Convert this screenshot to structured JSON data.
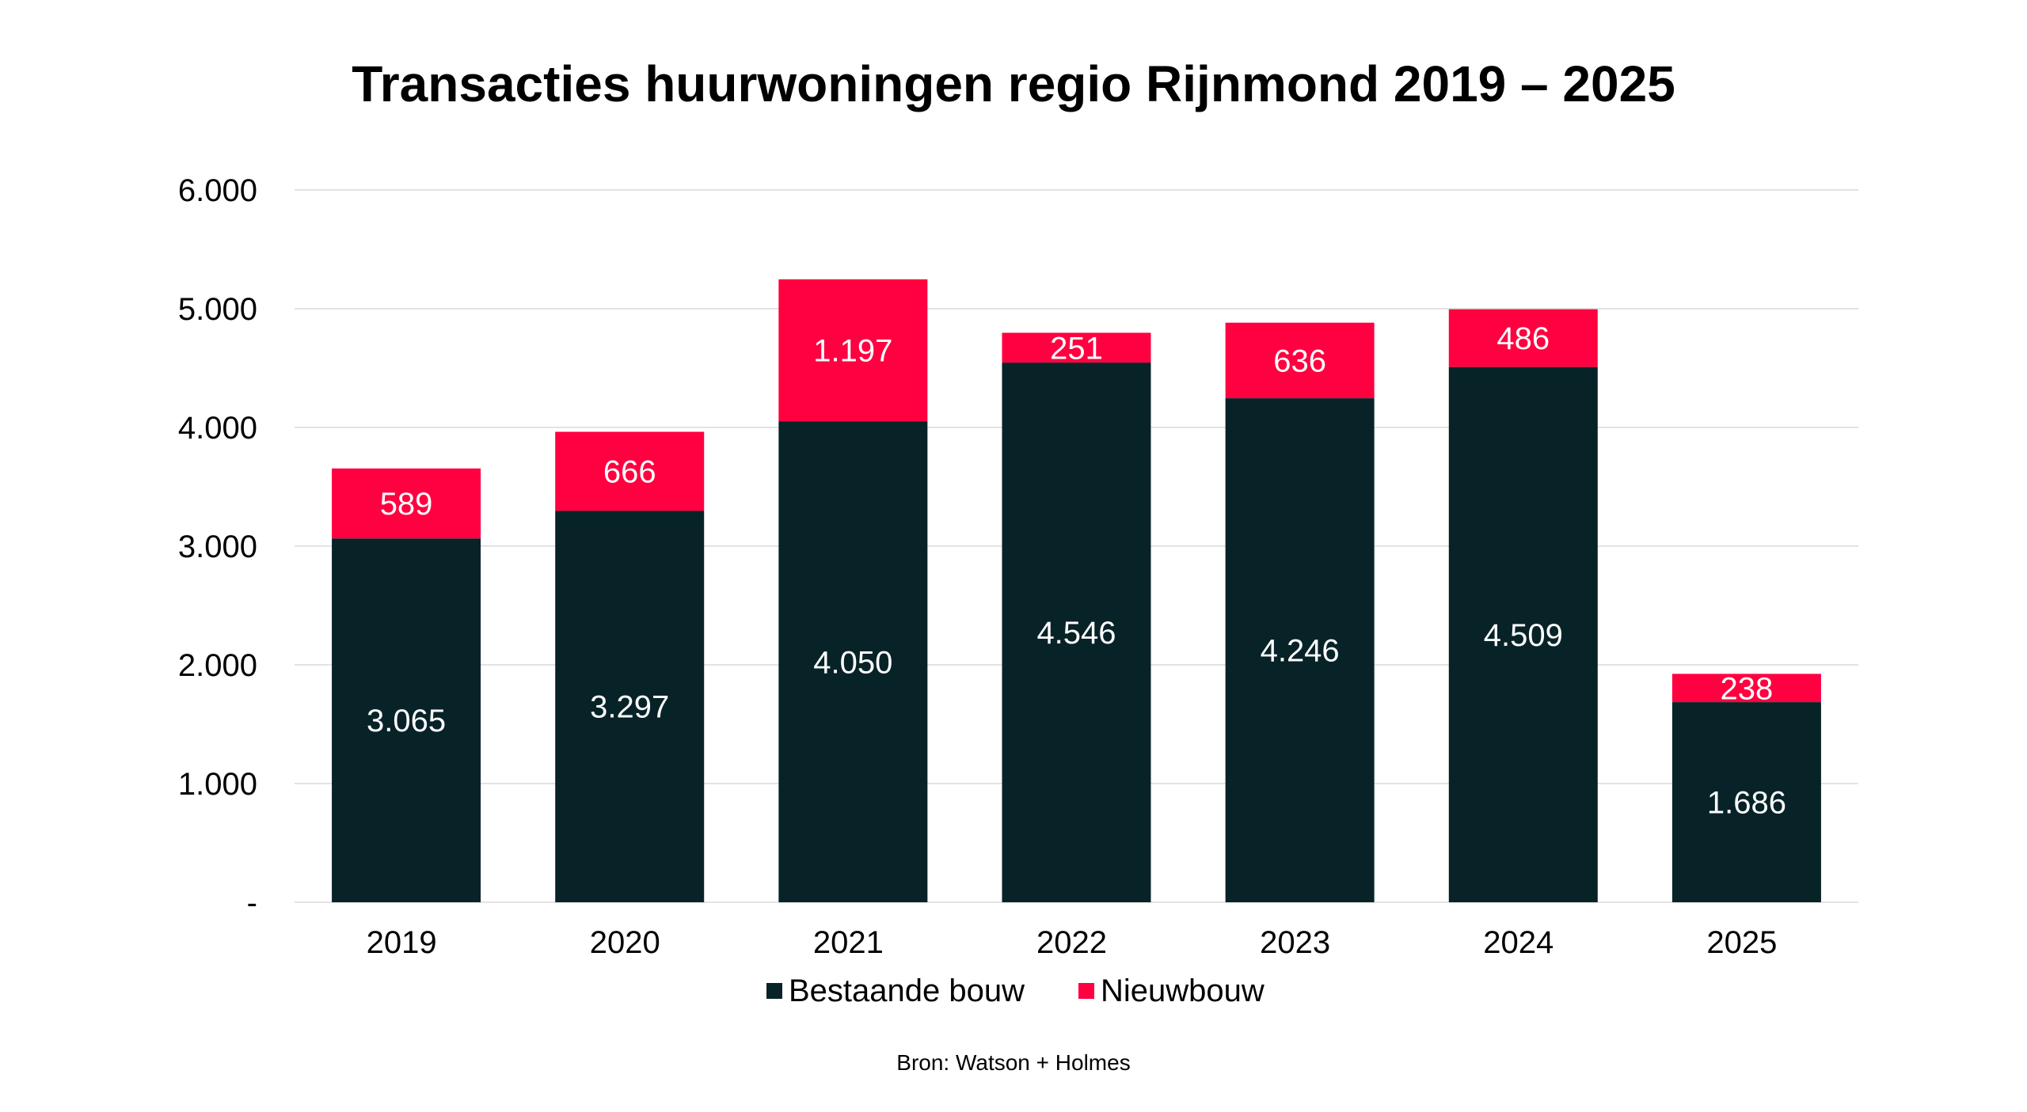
{
  "chart_data": {
    "type": "bar",
    "stacked": true,
    "title": "Transacties huurwoningen regio Rijnmond 2019 – 2025",
    "xlabel": "",
    "ylabel": "",
    "categories": [
      "2019",
      "2020",
      "2021",
      "2022",
      "2023",
      "2024",
      "2025"
    ],
    "series": [
      {
        "name": "Bestaande bouw",
        "color": "#082328",
        "values": [
          3065,
          3297,
          4050,
          4546,
          4246,
          4509,
          1686
        ],
        "labels": [
          "3.065",
          "3.297",
          "4.050",
          "4.546",
          "4.246",
          "4.509",
          "1.686"
        ]
      },
      {
        "name": "Nieuwbouw",
        "color": "#FF0040",
        "values": [
          589,
          666,
          1197,
          251,
          636,
          486,
          238
        ],
        "labels": [
          "589",
          "666",
          "1.197",
          "251",
          "636",
          "486",
          "238"
        ]
      }
    ],
    "ylim": [
      0,
      6000
    ],
    "yticks": [
      0,
      1000,
      2000,
      3000,
      4000,
      5000,
      6000
    ],
    "ytick_labels": [
      "-",
      "1.000",
      "2.000",
      "3.000",
      "4.000",
      "5.000",
      "6.000"
    ],
    "grid": true,
    "legend_position": "bottom",
    "source": "Bron: Watson + Holmes"
  }
}
